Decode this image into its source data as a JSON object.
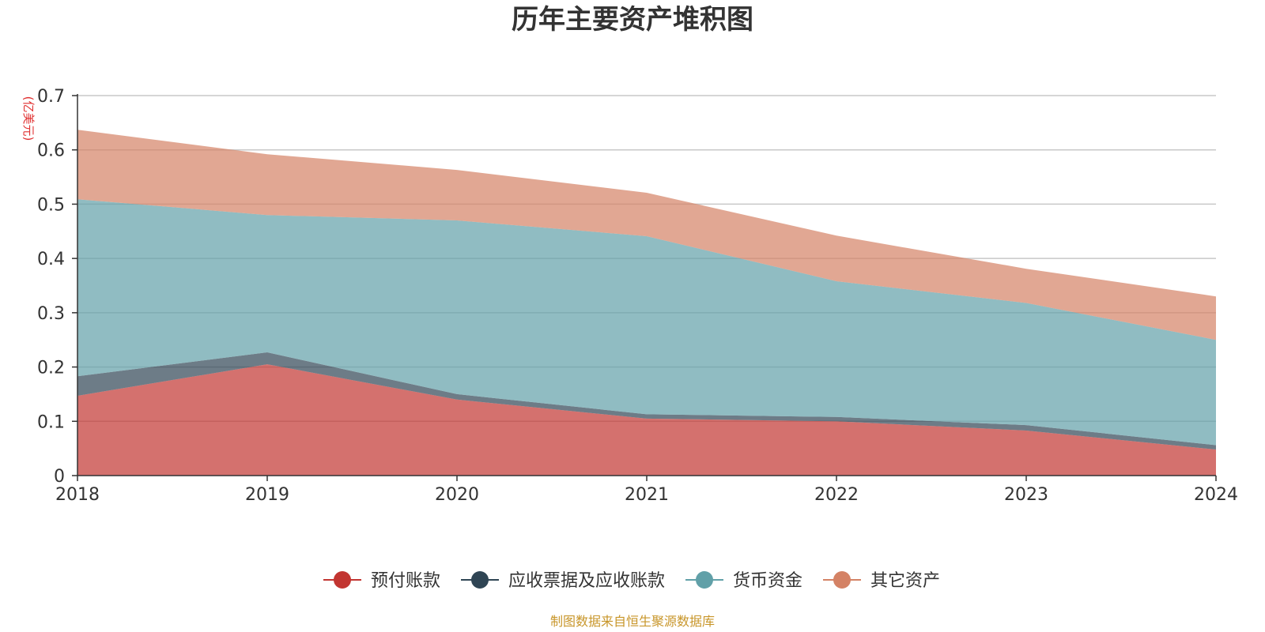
{
  "chart_data": {
    "type": "area",
    "stacked": true,
    "title": "历年主要资产堆积图",
    "y_unit": "(亿美元)",
    "x": [
      "2018",
      "2019",
      "2020",
      "2021",
      "2022",
      "2023",
      "2024"
    ],
    "ylim": [
      0,
      0.7
    ],
    "yticks": [
      "0",
      "0.1",
      "0.2",
      "0.3",
      "0.4",
      "0.5",
      "0.6",
      "0.7"
    ],
    "grid": true,
    "legend_position": "bottom",
    "series": [
      {
        "name": "预付账款",
        "color": "#c23531",
        "values": [
          0.147,
          0.205,
          0.14,
          0.105,
          0.1,
          0.083,
          0.048
        ]
      },
      {
        "name": "应收票据及应收账款",
        "color": "#2f4554",
        "values": [
          0.036,
          0.022,
          0.01,
          0.008,
          0.008,
          0.01,
          0.008
        ]
      },
      {
        "name": "货币资金",
        "color": "#61a0a8",
        "values": [
          0.326,
          0.253,
          0.32,
          0.328,
          0.25,
          0.225,
          0.194
        ]
      },
      {
        "name": "其它资产",
        "color": "#d48265",
        "values": [
          0.128,
          0.112,
          0.093,
          0.08,
          0.084,
          0.063,
          0.08
        ]
      }
    ],
    "source_note": "制图数据来自恒生聚源数据库"
  }
}
